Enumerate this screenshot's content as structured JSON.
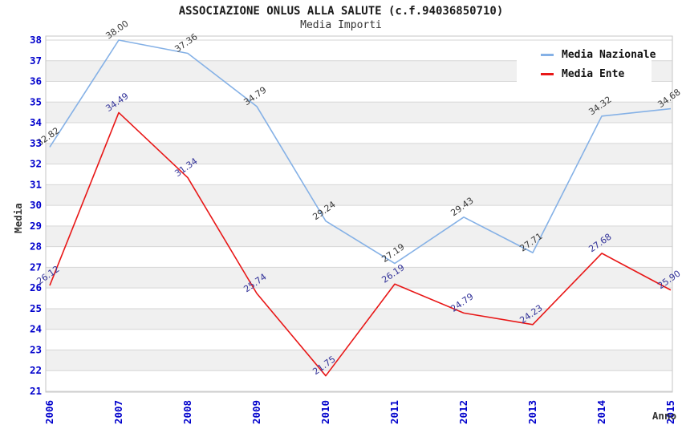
{
  "title": "ASSOCIAZIONE ONLUS ALLA SALUTE (c.f.94036850710)",
  "subtitle": "Media Importi",
  "legend": {
    "items": [
      {
        "label": "Media Nazionale",
        "color": "#85b1e6"
      },
      {
        "label": "Media Ente",
        "color": "#e81717"
      }
    ]
  },
  "chart_data": {
    "type": "line",
    "categories": [
      "2006",
      "2007",
      "2008",
      "2009",
      "2010",
      "2011",
      "2012",
      "2013",
      "2014",
      "2015"
    ],
    "series": [
      {
        "name": "Media Nazionale",
        "color": "#85b1e6",
        "label_color": "#3a3a3a",
        "values": [
          32.82,
          38.0,
          37.36,
          34.79,
          29.24,
          27.19,
          29.43,
          27.71,
          34.32,
          34.68
        ]
      },
      {
        "name": "Media Ente",
        "color": "#e81717",
        "label_color": "#333399",
        "values": [
          26.12,
          34.49,
          31.34,
          25.74,
          21.75,
          26.19,
          24.79,
          24.23,
          27.68,
          25.9
        ]
      }
    ],
    "title": "ASSOCIAZIONE ONLUS ALLA SALUTE (c.f.94036850710)",
    "subtitle": "Media Importi",
    "xlabel": "Anno",
    "ylabel": "Media",
    "ylim": [
      21,
      38
    ],
    "y_tick_step": 1,
    "grid": true,
    "legend_position": "top-right",
    "styles": {
      "tick_label_color": "#0000cc",
      "axis_title_color": "#333333",
      "band_fill": "#f0f0f0",
      "gridline_color": "#d6d6d6",
      "plot_border_color": "#c6c6c6",
      "background": "#ffffff"
    }
  }
}
